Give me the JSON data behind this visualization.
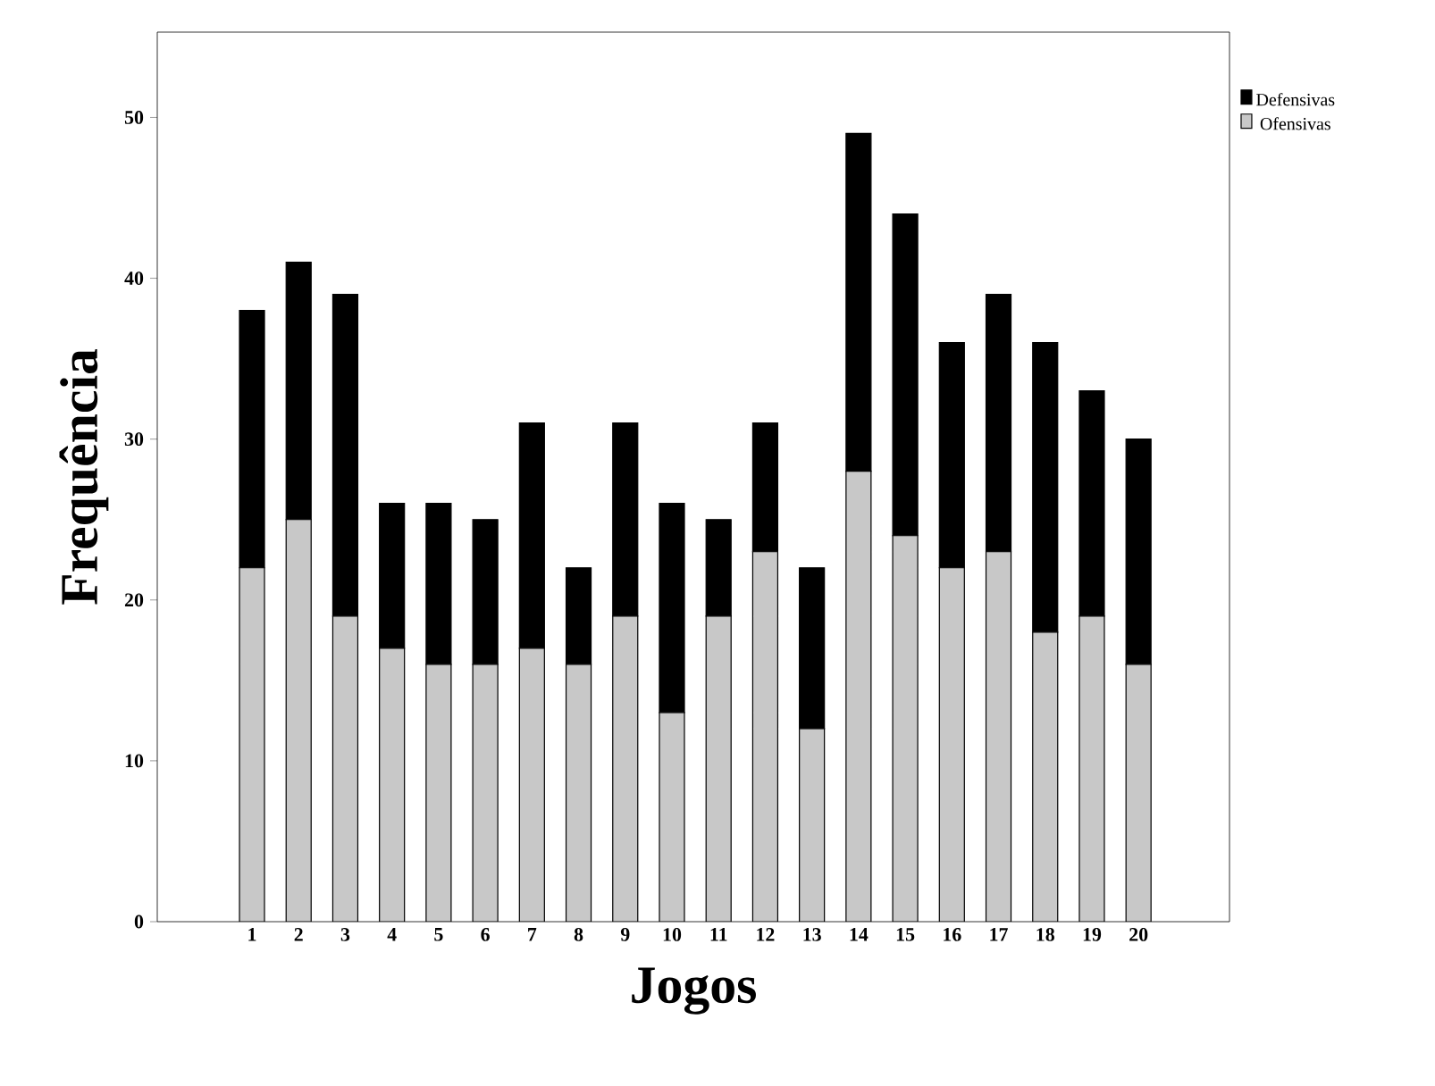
{
  "chart_data": {
    "type": "bar",
    "stacked": true,
    "xlabel": "Jogos",
    "ylabel": "Frequência",
    "categories": [
      "1",
      "2",
      "3",
      "4",
      "5",
      "6",
      "7",
      "8",
      "9",
      "10",
      "11",
      "12",
      "13",
      "14",
      "15",
      "16",
      "17",
      "18",
      "19",
      "20"
    ],
    "series": [
      {
        "name": "Ofensivas",
        "color": "#c8c8c8",
        "values": [
          22,
          25,
          19,
          17,
          16,
          16,
          17,
          16,
          19,
          13,
          19,
          23,
          12,
          28,
          24,
          22,
          23,
          18,
          19,
          16
        ]
      },
      {
        "name": "Defensivas",
        "color": "#000000",
        "values": [
          16,
          16,
          20,
          9,
          10,
          9,
          14,
          6,
          12,
          13,
          6,
          8,
          10,
          21,
          20,
          14,
          16,
          18,
          14,
          14
        ]
      }
    ],
    "ylim": [
      0,
      55.3
    ],
    "yticks": [
      0,
      10,
      20,
      30,
      40,
      50
    ],
    "grid": false,
    "legend": "top right"
  }
}
